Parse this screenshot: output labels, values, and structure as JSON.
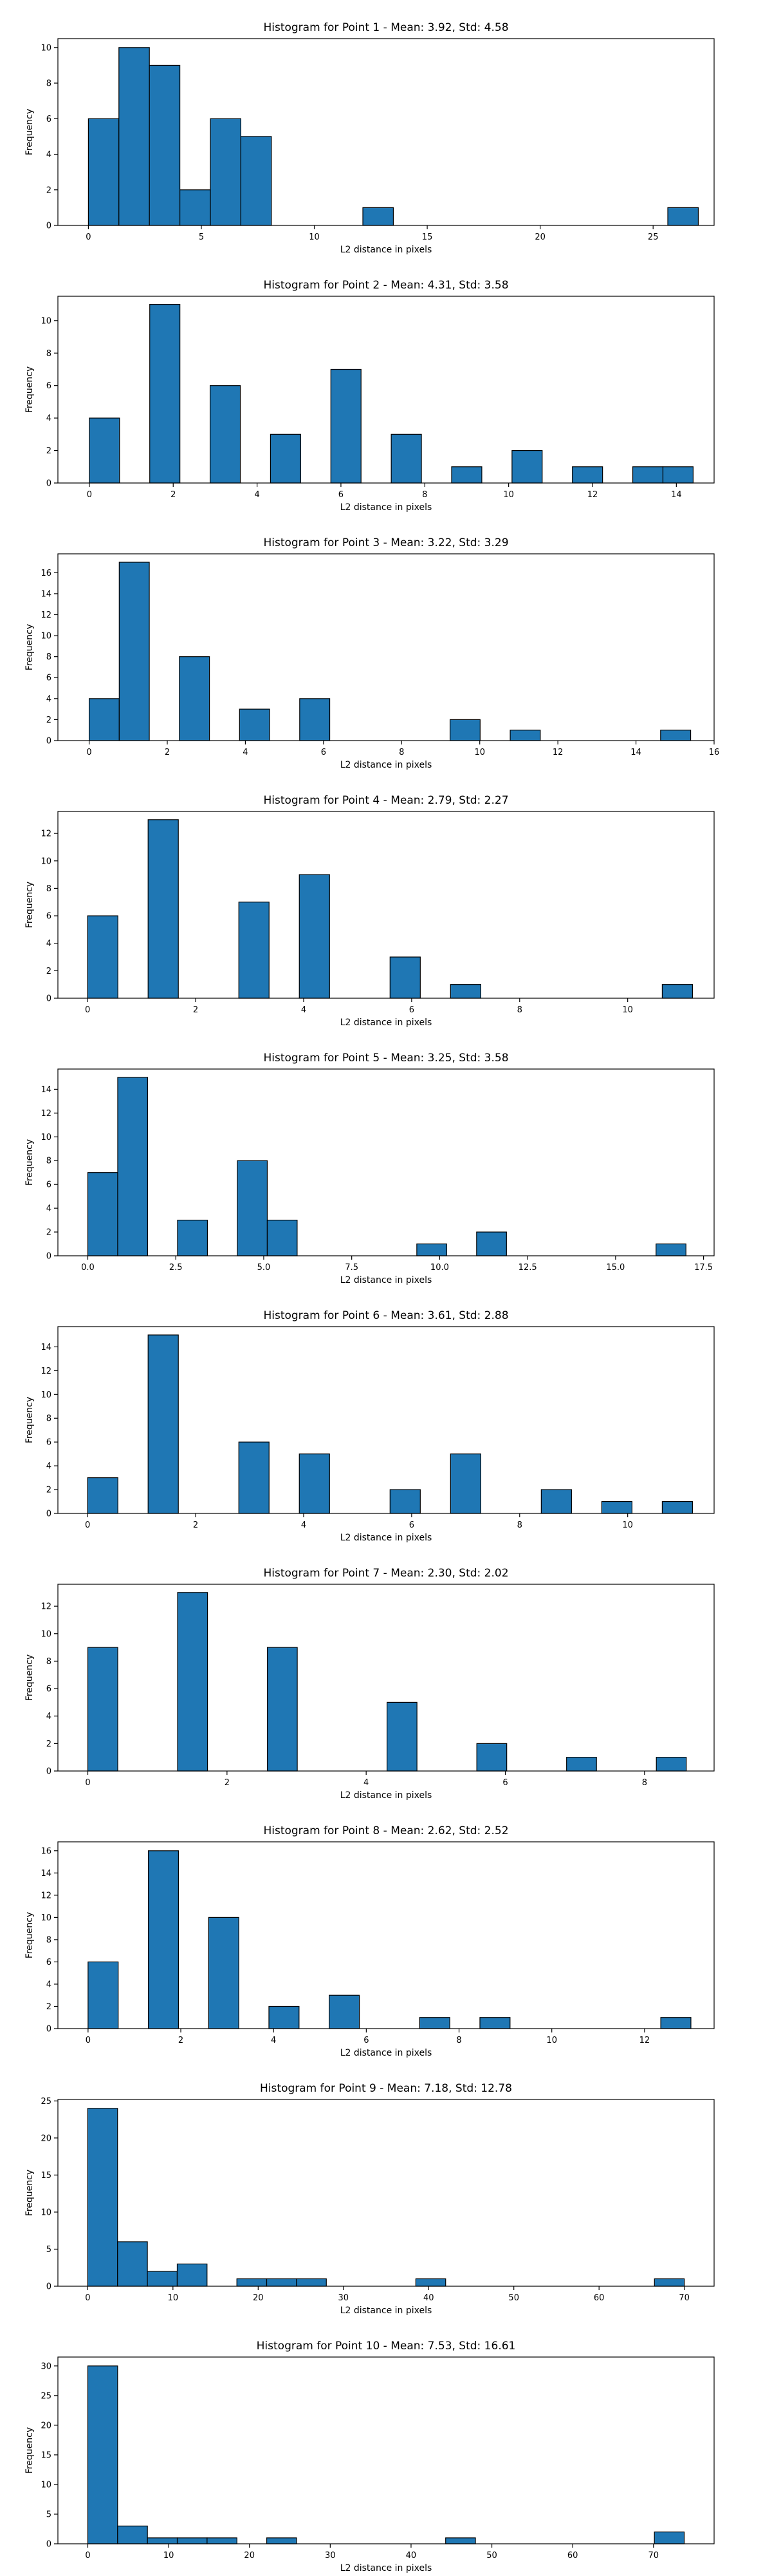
{
  "colors": {
    "bar_fill": "#1f77b4",
    "bar_edge": "#000000",
    "axes": "#000000"
  },
  "chart_data": [
    {
      "type": "bar",
      "title": "Histogram for Point 1 - Mean: 3.92, Std: 4.58",
      "xlabel": "L2 distance in pixels",
      "ylabel": "Frequency",
      "xlim": [
        -1.35,
        27.7
      ],
      "ylim": [
        0,
        10.5
      ],
      "xticks": [
        0,
        5,
        10,
        15,
        20,
        25
      ],
      "xtick_labels": [
        "0",
        "5",
        "10",
        "15",
        "20",
        "25"
      ],
      "yticks": [
        0,
        2,
        4,
        6,
        8,
        10
      ],
      "ytick_labels": [
        "0",
        "2",
        "4",
        "6",
        "8",
        "10"
      ],
      "bin_width": 1.35,
      "bins": [
        {
          "x": 0.0,
          "count": 6
        },
        {
          "x": 1.35,
          "count": 10
        },
        {
          "x": 2.7,
          "count": 9
        },
        {
          "x": 4.05,
          "count": 2
        },
        {
          "x": 5.4,
          "count": 6
        },
        {
          "x": 6.75,
          "count": 5
        },
        {
          "x": 12.15,
          "count": 1
        },
        {
          "x": 25.65,
          "count": 1
        }
      ]
    },
    {
      "type": "bar",
      "title": "Histogram for Point 2 - Mean: 4.31, Std: 3.58",
      "xlabel": "L2 distance in pixels",
      "ylabel": "Frequency",
      "xlim": [
        -0.75,
        14.9
      ],
      "ylim": [
        0,
        11.5
      ],
      "xticks": [
        0,
        2,
        4,
        6,
        8,
        10,
        12,
        14
      ],
      "xtick_labels": [
        "0",
        "2",
        "4",
        "6",
        "8",
        "10",
        "12",
        "14"
      ],
      "yticks": [
        0,
        2,
        4,
        6,
        8,
        10
      ],
      "ytick_labels": [
        "0",
        "2",
        "4",
        "6",
        "8",
        "10"
      ],
      "bin_width": 0.72,
      "bins": [
        {
          "x": 0.0,
          "count": 4
        },
        {
          "x": 1.44,
          "count": 11
        },
        {
          "x": 2.88,
          "count": 6
        },
        {
          "x": 4.32,
          "count": 3
        },
        {
          "x": 5.76,
          "count": 7
        },
        {
          "x": 7.2,
          "count": 3
        },
        {
          "x": 8.64,
          "count": 1
        },
        {
          "x": 10.08,
          "count": 2
        },
        {
          "x": 11.52,
          "count": 1
        },
        {
          "x": 12.96,
          "count": 1
        },
        {
          "x": 13.68,
          "count": 1
        }
      ]
    },
    {
      "type": "bar",
      "title": "Histogram for Point 3 - Mean: 3.22, Std: 3.29",
      "xlabel": "L2 distance in pixels",
      "ylabel": "Frequency",
      "xlim": [
        -0.8,
        16.0
      ],
      "ylim": [
        0,
        17.8
      ],
      "xticks": [
        0,
        2,
        4,
        6,
        8,
        10,
        12,
        14,
        16
      ],
      "xtick_labels": [
        "0",
        "2",
        "4",
        "6",
        "8",
        "10",
        "12",
        "14",
        "16"
      ],
      "yticks": [
        0,
        2,
        4,
        6,
        8,
        10,
        12,
        14,
        16
      ],
      "ytick_labels": [
        "0",
        "2",
        "4",
        "6",
        "8",
        "10",
        "12",
        "14",
        "16"
      ],
      "bin_width": 0.77,
      "bins": [
        {
          "x": 0.0,
          "count": 4
        },
        {
          "x": 0.77,
          "count": 17
        },
        {
          "x": 2.31,
          "count": 8
        },
        {
          "x": 3.85,
          "count": 3
        },
        {
          "x": 5.39,
          "count": 4
        },
        {
          "x": 9.24,
          "count": 2
        },
        {
          "x": 10.78,
          "count": 1
        },
        {
          "x": 14.63,
          "count": 1
        }
      ]
    },
    {
      "type": "bar",
      "title": "Histogram for Point 4 - Mean: 2.79, Std: 2.27",
      "xlabel": "L2 distance in pixels",
      "ylabel": "Frequency",
      "xlim": [
        -0.55,
        11.6
      ],
      "ylim": [
        0,
        13.6
      ],
      "xticks": [
        0,
        2,
        4,
        6,
        8,
        10
      ],
      "xtick_labels": [
        "0",
        "2",
        "4",
        "6",
        "8",
        "10"
      ],
      "yticks": [
        0,
        2,
        4,
        6,
        8,
        10,
        12
      ],
      "ytick_labels": [
        "0",
        "2",
        "4",
        "6",
        "8",
        "10",
        "12"
      ],
      "bin_width": 0.56,
      "bins": [
        {
          "x": 0.0,
          "count": 6
        },
        {
          "x": 1.12,
          "count": 13
        },
        {
          "x": 2.8,
          "count": 7
        },
        {
          "x": 3.92,
          "count": 9
        },
        {
          "x": 5.6,
          "count": 3
        },
        {
          "x": 6.72,
          "count": 1
        },
        {
          "x": 10.64,
          "count": 1
        }
      ]
    },
    {
      "type": "bar",
      "title": "Histogram for Point 5 - Mean: 3.25, Std: 3.58",
      "xlabel": "L2 distance in pixels",
      "ylabel": "Frequency",
      "xlim": [
        -0.85,
        17.8
      ],
      "ylim": [
        0,
        15.7
      ],
      "xticks": [
        0.0,
        2.5,
        5.0,
        7.5,
        10.0,
        12.5,
        15.0,
        17.5
      ],
      "xtick_labels": [
        "0.0",
        "2.5",
        "5.0",
        "7.5",
        "10.0",
        "12.5",
        "15.0",
        "17.5"
      ],
      "yticks": [
        0,
        2,
        4,
        6,
        8,
        10,
        12,
        14
      ],
      "ytick_labels": [
        "0",
        "2",
        "4",
        "6",
        "8",
        "10",
        "12",
        "14"
      ],
      "bin_width": 0.85,
      "bins": [
        {
          "x": 0.0,
          "count": 7
        },
        {
          "x": 0.85,
          "count": 15
        },
        {
          "x": 2.55,
          "count": 3
        },
        {
          "x": 4.25,
          "count": 8
        },
        {
          "x": 5.1,
          "count": 3
        },
        {
          "x": 9.35,
          "count": 1
        },
        {
          "x": 11.05,
          "count": 2
        },
        {
          "x": 16.15,
          "count": 1
        }
      ]
    },
    {
      "type": "bar",
      "title": "Histogram for Point 6 - Mean: 3.61, Std: 2.88",
      "xlabel": "L2 distance in pixels",
      "ylabel": "Frequency",
      "xlim": [
        -0.55,
        11.6
      ],
      "ylim": [
        0,
        15.7
      ],
      "xticks": [
        0,
        2,
        4,
        6,
        8,
        10
      ],
      "xtick_labels": [
        "0",
        "2",
        "4",
        "6",
        "8",
        "10"
      ],
      "yticks": [
        0,
        2,
        4,
        6,
        8,
        10,
        12,
        14
      ],
      "ytick_labels": [
        "0",
        "2",
        "4",
        "6",
        "8",
        "10",
        "12",
        "14"
      ],
      "bin_width": 0.56,
      "bins": [
        {
          "x": 0.0,
          "count": 3
        },
        {
          "x": 1.12,
          "count": 15
        },
        {
          "x": 2.8,
          "count": 6
        },
        {
          "x": 3.92,
          "count": 5
        },
        {
          "x": 5.6,
          "count": 2
        },
        {
          "x": 6.72,
          "count": 5
        },
        {
          "x": 8.4,
          "count": 2
        },
        {
          "x": 9.52,
          "count": 1
        },
        {
          "x": 10.64,
          "count": 1
        }
      ]
    },
    {
      "type": "bar",
      "title": "Histogram for Point 7 - Mean: 2.30, Std: 2.02",
      "xlabel": "L2 distance in pixels",
      "ylabel": "Frequency",
      "xlim": [
        -0.43,
        9.0
      ],
      "ylim": [
        0,
        13.6
      ],
      "xticks": [
        0,
        2,
        4,
        6,
        8
      ],
      "xtick_labels": [
        "0",
        "2",
        "4",
        "6",
        "8"
      ],
      "yticks": [
        0,
        2,
        4,
        6,
        8,
        10,
        12
      ],
      "ytick_labels": [
        "0",
        "2",
        "4",
        "6",
        "8",
        "10",
        "12"
      ],
      "bin_width": 0.43,
      "bins": [
        {
          "x": 0.0,
          "count": 9
        },
        {
          "x": 1.29,
          "count": 13
        },
        {
          "x": 2.58,
          "count": 9
        },
        {
          "x": 4.3,
          "count": 5
        },
        {
          "x": 5.59,
          "count": 2
        },
        {
          "x": 6.88,
          "count": 1
        },
        {
          "x": 8.17,
          "count": 1
        }
      ]
    },
    {
      "type": "bar",
      "title": "Histogram for Point 8 - Mean: 2.62, Std: 2.52",
      "xlabel": "L2 distance in pixels",
      "ylabel": "Frequency",
      "xlim": [
        -0.65,
        13.5
      ],
      "ylim": [
        0,
        16.8
      ],
      "xticks": [
        0,
        2,
        4,
        6,
        8,
        10,
        12
      ],
      "xtick_labels": [
        "0",
        "2",
        "4",
        "6",
        "8",
        "10",
        "12"
      ],
      "yticks": [
        0,
        2,
        4,
        6,
        8,
        10,
        12,
        14,
        16
      ],
      "ytick_labels": [
        "0",
        "2",
        "4",
        "6",
        "8",
        "10",
        "12",
        "14",
        "16"
      ],
      "bin_width": 0.65,
      "bins": [
        {
          "x": 0.0,
          "count": 6
        },
        {
          "x": 1.3,
          "count": 16
        },
        {
          "x": 2.6,
          "count": 10
        },
        {
          "x": 3.9,
          "count": 2
        },
        {
          "x": 5.2,
          "count": 3
        },
        {
          "x": 7.15,
          "count": 1
        },
        {
          "x": 8.45,
          "count": 1
        },
        {
          "x": 12.35,
          "count": 1
        }
      ]
    },
    {
      "type": "bar",
      "title": "Histogram for Point 9 - Mean: 7.18, Std: 12.78",
      "xlabel": "L2 distance in pixels",
      "ylabel": "Frequency",
      "xlim": [
        -3.5,
        73.5
      ],
      "ylim": [
        0,
        25.2
      ],
      "xticks": [
        0,
        10,
        20,
        30,
        40,
        50,
        60,
        70
      ],
      "xtick_labels": [
        "0",
        "10",
        "20",
        "30",
        "40",
        "50",
        "60",
        "70"
      ],
      "yticks": [
        0,
        5,
        10,
        15,
        20,
        25
      ],
      "ytick_labels": [
        "0",
        "5",
        "10",
        "15",
        "20",
        "25"
      ],
      "bin_width": 3.5,
      "bins": [
        {
          "x": 0.0,
          "count": 24
        },
        {
          "x": 3.5,
          "count": 6
        },
        {
          "x": 7.0,
          "count": 2
        },
        {
          "x": 10.5,
          "count": 3
        },
        {
          "x": 17.5,
          "count": 1
        },
        {
          "x": 21.0,
          "count": 1
        },
        {
          "x": 24.5,
          "count": 1
        },
        {
          "x": 38.5,
          "count": 1
        },
        {
          "x": 66.5,
          "count": 1
        }
      ]
    },
    {
      "type": "bar",
      "title": "Histogram for Point 10 - Mean: 7.53, Std: 16.61",
      "xlabel": "L2 distance in pixels",
      "ylabel": "Frequency",
      "xlim": [
        -3.7,
        77.5
      ],
      "ylim": [
        0,
        31.5
      ],
      "xticks": [
        0,
        10,
        20,
        30,
        40,
        50,
        60,
        70
      ],
      "xtick_labels": [
        "0",
        "10",
        "20",
        "30",
        "40",
        "50",
        "60",
        "70"
      ],
      "yticks": [
        0,
        5,
        10,
        15,
        20,
        25,
        30
      ],
      "ytick_labels": [
        "0",
        "5",
        "10",
        "15",
        "20",
        "25",
        "30"
      ],
      "bin_width": 3.69,
      "bins": [
        {
          "x": 0.0,
          "count": 30
        },
        {
          "x": 3.69,
          "count": 3
        },
        {
          "x": 7.38,
          "count": 1
        },
        {
          "x": 11.07,
          "count": 1
        },
        {
          "x": 14.76,
          "count": 1
        },
        {
          "x": 22.14,
          "count": 1
        },
        {
          "x": 44.28,
          "count": 1
        },
        {
          "x": 70.11,
          "count": 2
        }
      ]
    }
  ]
}
